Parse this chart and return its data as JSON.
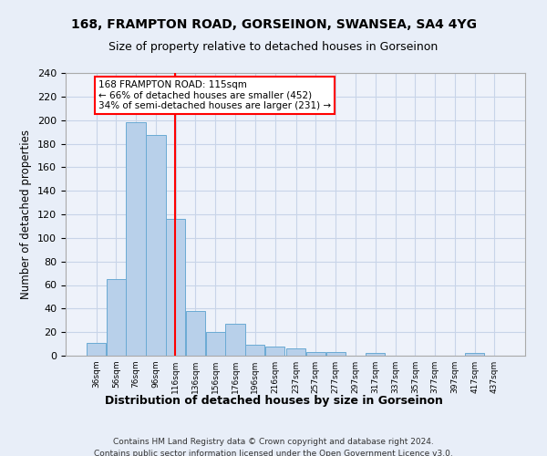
{
  "title": "168, FRAMPTON ROAD, GORSEINON, SWANSEA, SA4 4YG",
  "subtitle": "Size of property relative to detached houses in Gorseinon",
  "xlabel": "Distribution of detached houses by size in Gorseinon",
  "ylabel": "Number of detached properties",
  "bar_centers": [
    36,
    56,
    76,
    96,
    116,
    136,
    156,
    176,
    196,
    216,
    237,
    257,
    277,
    297,
    317,
    337,
    357,
    377,
    397,
    417,
    437
  ],
  "bar_values": [
    11,
    65,
    198,
    187,
    116,
    38,
    20,
    27,
    9,
    8,
    6,
    3,
    3,
    0,
    2,
    0,
    0,
    0,
    0,
    2,
    0
  ],
  "bin_width": 20,
  "bar_color": "#b8d0ea",
  "bar_edge_color": "#6aaad4",
  "grid_color": "#c8d4e8",
  "vline_x": 115,
  "vline_color": "red",
  "annotation_text": "168 FRAMPTON ROAD: 115sqm\n← 66% of detached houses are smaller (452)\n34% of semi-detached houses are larger (231) →",
  "annotation_box_color": "white",
  "annotation_box_edge": "red",
  "ylim": [
    0,
    240
  ],
  "yticks": [
    0,
    20,
    40,
    60,
    80,
    100,
    120,
    140,
    160,
    180,
    200,
    220,
    240
  ],
  "tick_labels": [
    "36sqm",
    "56sqm",
    "76sqm",
    "96sqm",
    "116sqm",
    "136sqm",
    "156sqm",
    "176sqm",
    "196sqm",
    "216sqm",
    "237sqm",
    "257sqm",
    "277sqm",
    "297sqm",
    "317sqm",
    "337sqm",
    "357sqm",
    "377sqm",
    "397sqm",
    "417sqm",
    "437sqm"
  ],
  "footer_line1": "Contains HM Land Registry data © Crown copyright and database right 2024.",
  "footer_line2": "Contains public sector information licensed under the Open Government Licence v3.0.",
  "bg_color": "#e8eef8",
  "plot_bg_color": "#eef2fa"
}
